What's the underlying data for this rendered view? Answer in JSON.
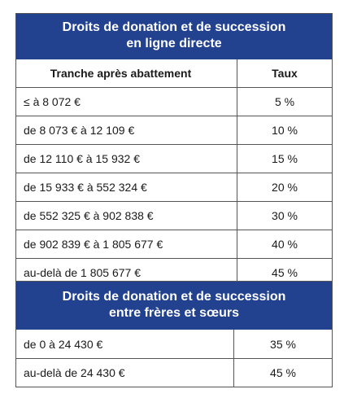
{
  "table1": {
    "title_line1": "Droits de donation et de succession",
    "title_line2": "en ligne directe",
    "col_tranche": "Tranche après abattement",
    "col_taux": "Taux",
    "rows": [
      {
        "tranche": "≤ à 8 072 €",
        "taux": "5 %"
      },
      {
        "tranche": "de 8 073 € à 12 109 €",
        "taux": "10 %"
      },
      {
        "tranche": "de 12 110 € à 15 932 €",
        "taux": "15 %"
      },
      {
        "tranche": "de 15 933 € à 552 324 €",
        "taux": "20 %"
      },
      {
        "tranche": "de 552 325 € à 902 838 €",
        "taux": "30 %"
      },
      {
        "tranche": "de 902 839 € à 1 805 677 €",
        "taux": "40 %"
      },
      {
        "tranche": "au-delà de 1 805 677 €",
        "taux": "45 %"
      }
    ]
  },
  "table2": {
    "title_line1": "Droits de donation et de succession",
    "title_line2": "entre frères et sœurs",
    "rows": [
      {
        "tranche": "de 0 à 24 430 €",
        "taux": "35 %"
      },
      {
        "tranche": "au-delà de 24 430 €",
        "taux": "45 %"
      }
    ]
  },
  "colors": {
    "header_bg": "#22428f",
    "header_text": "#ffffff",
    "border": "#555555"
  }
}
